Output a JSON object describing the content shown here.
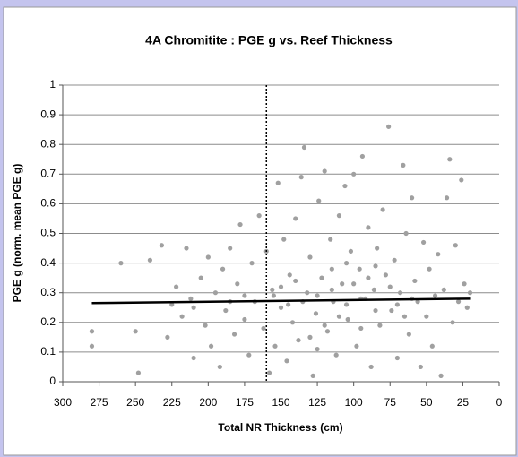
{
  "chart_data": {
    "type": "scatter",
    "title": "4A Chromitite : PGE g vs. Reef Thickness",
    "xlabel": "Total NR Thickness (cm)",
    "ylabel": "PGE g (norm. mean PGE g)",
    "xlim": [
      300,
      0
    ],
    "xticks": [
      300,
      275,
      250,
      225,
      200,
      175,
      150,
      125,
      100,
      75,
      50,
      25,
      0
    ],
    "ylim": [
      0,
      1
    ],
    "yticks": [
      0,
      0.1,
      0.2,
      0.3,
      0.4,
      0.5,
      0.6,
      0.7,
      0.8,
      0.9,
      1
    ],
    "grid": true,
    "reference_x": 160,
    "series": [
      {
        "color": "#a0a0a0",
        "x": [
          280,
          280,
          260,
          250,
          248,
          240,
          232,
          228,
          222,
          218,
          215,
          212,
          210,
          205,
          202,
          200,
          198,
          195,
          192,
          190,
          188,
          185,
          182,
          180,
          178,
          175,
          172,
          170,
          168,
          165,
          162,
          160,
          158,
          156,
          154,
          152,
          150,
          148,
          146,
          144,
          142,
          140,
          138,
          136,
          134,
          132,
          130,
          128,
          126,
          124,
          122,
          120,
          118,
          116,
          114,
          112,
          110,
          108,
          106,
          104,
          102,
          100,
          98,
          96,
          94,
          92,
          90,
          88,
          86,
          84,
          82,
          80,
          78,
          76,
          74,
          72,
          70,
          68,
          66,
          64,
          62,
          60,
          58,
          56,
          54,
          52,
          50,
          48,
          46,
          44,
          42,
          40,
          38,
          36,
          34,
          32,
          30,
          28,
          26,
          24,
          22,
          20,
          135,
          125,
          115,
          105,
          95,
          85,
          145,
          155,
          110,
          100,
          90,
          120,
          130,
          75,
          65,
          140,
          105,
          95,
          115,
          125,
          85,
          70,
          60,
          150,
          175,
          185,
          210,
          225
        ],
        "values": [
          0.17,
          0.12,
          0.4,
          0.17,
          0.03,
          0.41,
          0.46,
          0.15,
          0.32,
          0.22,
          0.45,
          0.28,
          0.08,
          0.35,
          0.19,
          0.42,
          0.12,
          0.3,
          0.05,
          0.38,
          0.24,
          0.45,
          0.16,
          0.33,
          0.53,
          0.21,
          0.09,
          0.4,
          0.27,
          0.56,
          0.18,
          0.44,
          0.03,
          0.31,
          0.12,
          0.67,
          0.25,
          0.48,
          0.07,
          0.36,
          0.2,
          0.55,
          0.14,
          0.69,
          0.79,
          0.3,
          0.42,
          0.02,
          0.23,
          0.61,
          0.35,
          0.71,
          0.17,
          0.48,
          0.27,
          0.09,
          0.56,
          0.33,
          0.66,
          0.21,
          0.44,
          0.7,
          0.12,
          0.38,
          0.76,
          0.28,
          0.52,
          0.05,
          0.31,
          0.45,
          0.19,
          0.58,
          0.36,
          0.86,
          0.24,
          0.41,
          0.08,
          0.3,
          0.73,
          0.5,
          0.16,
          0.62,
          0.34,
          0.27,
          0.05,
          0.47,
          0.22,
          0.38,
          0.12,
          0.29,
          0.43,
          0.02,
          0.31,
          0.62,
          0.75,
          0.2,
          0.46,
          0.27,
          0.68,
          0.33,
          0.25,
          0.3,
          0.27,
          0.29,
          0.31,
          0.26,
          0.28,
          0.24,
          0.26,
          0.29,
          0.22,
          0.33,
          0.35,
          0.19,
          0.15,
          0.32,
          0.22,
          0.34,
          0.4,
          0.18,
          0.38,
          0.11,
          0.39,
          0.26,
          0.28,
          0.32,
          0.29,
          0.27,
          0.25,
          0.26
        ]
      }
    ],
    "trend": {
      "color": "#000000",
      "x": [
        280,
        20
      ],
      "values": [
        0.265,
        0.28
      ]
    }
  }
}
